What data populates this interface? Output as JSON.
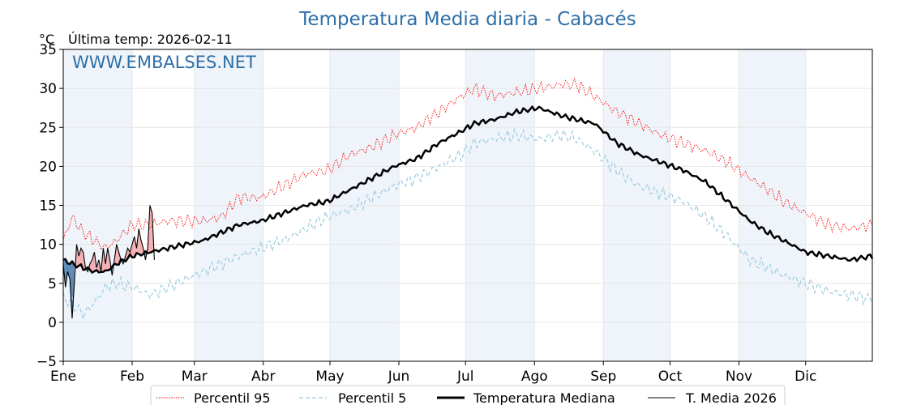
{
  "chart_data": {
    "type": "line",
    "title": "Temperatura Media diaria - Cabacés",
    "unit": "°C",
    "last_temp": "Última temp: 2026-02-11",
    "watermark": "WWW.EMBALSES.NET",
    "ylim": [
      -5,
      35
    ],
    "y_ticks": [
      -5,
      0,
      5,
      10,
      15,
      20,
      25,
      30,
      35
    ],
    "y_tick_labels": [
      "−5",
      "0",
      "5",
      "10",
      "15",
      "20",
      "25",
      "30",
      "35"
    ],
    "x_range_days": [
      1,
      365
    ],
    "months": [
      {
        "label": "Ene",
        "day": 1
      },
      {
        "label": "Feb",
        "day": 32
      },
      {
        "label": "Mar",
        "day": 60
      },
      {
        "label": "Abr",
        "day": 91
      },
      {
        "label": "May",
        "day": 121
      },
      {
        "label": "Jun",
        "day": 152
      },
      {
        "label": "Jul",
        "day": 182
      },
      {
        "label": "Ago",
        "day": 213
      },
      {
        "label": "Sep",
        "day": 244
      },
      {
        "label": "Oct",
        "day": 274
      },
      {
        "label": "Nov",
        "day": 305
      },
      {
        "label": "Dic",
        "day": 335
      }
    ],
    "grid": true,
    "legend_position": "bottom",
    "colors": {
      "p95": "#ff0000",
      "p5": "#9ccbe0",
      "median": "#000000",
      "current": "#000000",
      "above_fill": "#f4a9ac",
      "below_fill": "#4a7fb0",
      "band": "#eef4fa"
    },
    "series": [
      {
        "name": "Percentil 95",
        "style": "dotted",
        "x": [
          1,
          5,
          10,
          15,
          20,
          25,
          32,
          40,
          48,
          56,
          64,
          72,
          80,
          90,
          100,
          110,
          120,
          130,
          140,
          150,
          160,
          170,
          180,
          186,
          195,
          205,
          215,
          225,
          232,
          240,
          250,
          260,
          270,
          280,
          290,
          300,
          310,
          318,
          325,
          335,
          345,
          355,
          365
        ],
        "values": [
          10.5,
          13.5,
          11.5,
          10.5,
          9.5,
          10.5,
          12.5,
          12.5,
          13.0,
          13.0,
          13.0,
          13.5,
          16.0,
          16.0,
          17.5,
          19.0,
          19.5,
          21.5,
          22.5,
          24.0,
          25.0,
          27.0,
          29.0,
          30.0,
          29.0,
          29.5,
          30.0,
          30.5,
          30.5,
          29.0,
          27.0,
          25.5,
          24.0,
          23.0,
          22.0,
          20.5,
          18.5,
          17.0,
          15.5,
          14.0,
          12.5,
          12.0,
          12.5
        ]
      },
      {
        "name": "Percentil 5",
        "style": "dashed",
        "x": [
          1,
          5,
          10,
          15,
          20,
          25,
          32,
          40,
          48,
          56,
          64,
          72,
          80,
          90,
          100,
          110,
          120,
          130,
          140,
          150,
          160,
          170,
          180,
          186,
          195,
          205,
          215,
          225,
          232,
          240,
          250,
          260,
          270,
          280,
          290,
          300,
          310,
          318,
          325,
          335,
          345,
          355,
          365
        ],
        "values": [
          3.0,
          2.5,
          1.0,
          2.5,
          4.5,
          5.0,
          4.5,
          3.5,
          4.5,
          5.5,
          6.5,
          7.5,
          8.5,
          9.5,
          10.5,
          12.0,
          13.5,
          14.5,
          16.0,
          17.5,
          18.5,
          20.0,
          21.5,
          23.0,
          23.5,
          24.0,
          23.5,
          24.0,
          23.5,
          22.0,
          19.5,
          17.5,
          16.5,
          15.5,
          13.5,
          11.0,
          8.0,
          7.0,
          6.0,
          5.0,
          4.0,
          3.5,
          3.0
        ]
      },
      {
        "name": "Temperatura Mediana",
        "style": "solid-bold",
        "x": [
          1,
          5,
          10,
          15,
          20,
          25,
          32,
          40,
          48,
          56,
          64,
          72,
          80,
          90,
          100,
          110,
          120,
          130,
          140,
          150,
          160,
          170,
          180,
          186,
          195,
          205,
          215,
          225,
          232,
          240,
          250,
          260,
          270,
          280,
          290,
          300,
          310,
          318,
          325,
          335,
          345,
          355,
          365
        ],
        "values": [
          8.0,
          7.5,
          7.0,
          6.5,
          6.5,
          7.5,
          8.5,
          9.0,
          9.5,
          10.0,
          10.5,
          11.5,
          12.5,
          13.0,
          14.0,
          15.0,
          15.5,
          17.0,
          18.5,
          20.0,
          21.0,
          23.0,
          24.5,
          25.5,
          26.0,
          27.0,
          27.5,
          26.5,
          26.0,
          25.5,
          23.0,
          21.5,
          20.5,
          19.5,
          18.0,
          15.5,
          13.0,
          11.5,
          10.5,
          9.0,
          8.5,
          8.0,
          8.5
        ]
      },
      {
        "name": "T. Media 2026",
        "style": "solid-thin",
        "x": [
          1,
          2,
          3,
          4,
          5,
          6,
          7,
          8,
          9,
          10,
          11,
          12,
          13,
          14,
          15,
          16,
          17,
          18,
          19,
          20,
          21,
          22,
          23,
          24,
          25,
          26,
          27,
          28,
          29,
          30,
          31,
          32,
          33,
          34,
          35,
          36,
          37,
          38,
          39,
          40,
          41,
          42
        ],
        "values": [
          7.5,
          4.5,
          6.5,
          5.5,
          0.5,
          5.0,
          10.0,
          8.5,
          9.5,
          9.0,
          7.0,
          6.5,
          7.5,
          8.0,
          9.0,
          7.0,
          8.0,
          6.5,
          9.5,
          7.5,
          9.5,
          8.0,
          6.0,
          8.0,
          10.0,
          9.0,
          8.0,
          7.5,
          8.5,
          9.5,
          9.0,
          10.0,
          11.0,
          9.5,
          12.0,
          10.5,
          9.5,
          8.0,
          9.5,
          15.0,
          14.0,
          8.0
        ]
      }
    ]
  }
}
